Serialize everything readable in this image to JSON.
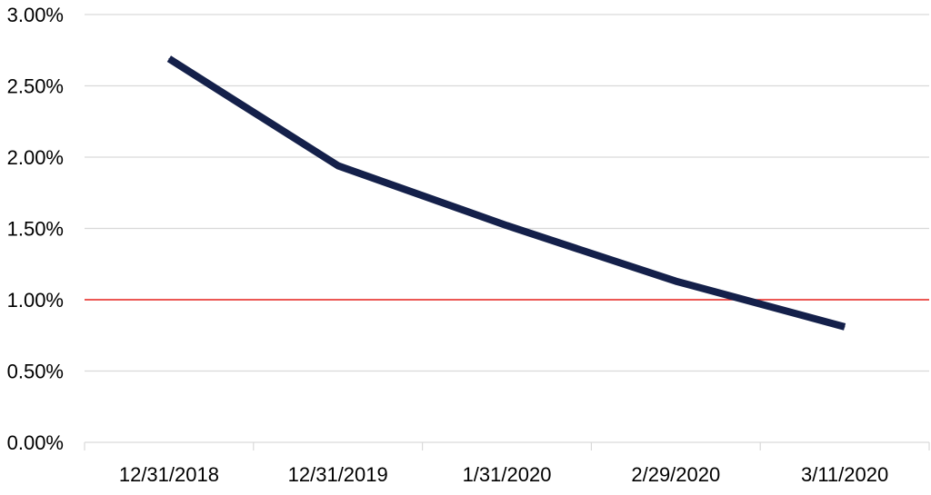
{
  "chart_data": {
    "type": "line",
    "title": "",
    "xlabel": "",
    "ylabel": "",
    "categories": [
      "12/31/2018",
      "12/31/2019",
      "1/31/2020",
      "2/29/2020",
      "3/11/2020"
    ],
    "series": [
      {
        "values": [
          2.69,
          1.94,
          1.52,
          1.13,
          0.81
        ]
      }
    ],
    "ylim": [
      0,
      3
    ],
    "y_ticks": [
      0,
      0.5,
      1,
      1.5,
      2,
      2.5,
      3
    ],
    "y_tick_labels": [
      "0.00%",
      "0.50%",
      "1.00%",
      "1.50%",
      "2.00%",
      "2.50%",
      "3.00%"
    ],
    "reference_line": {
      "value": 1.0,
      "color": "#e8231f"
    },
    "grid": true,
    "legend": "none",
    "colors": {
      "series_line": "#14204a",
      "gridline": "#d9d9d9",
      "axis": "#d9d9d9"
    }
  }
}
